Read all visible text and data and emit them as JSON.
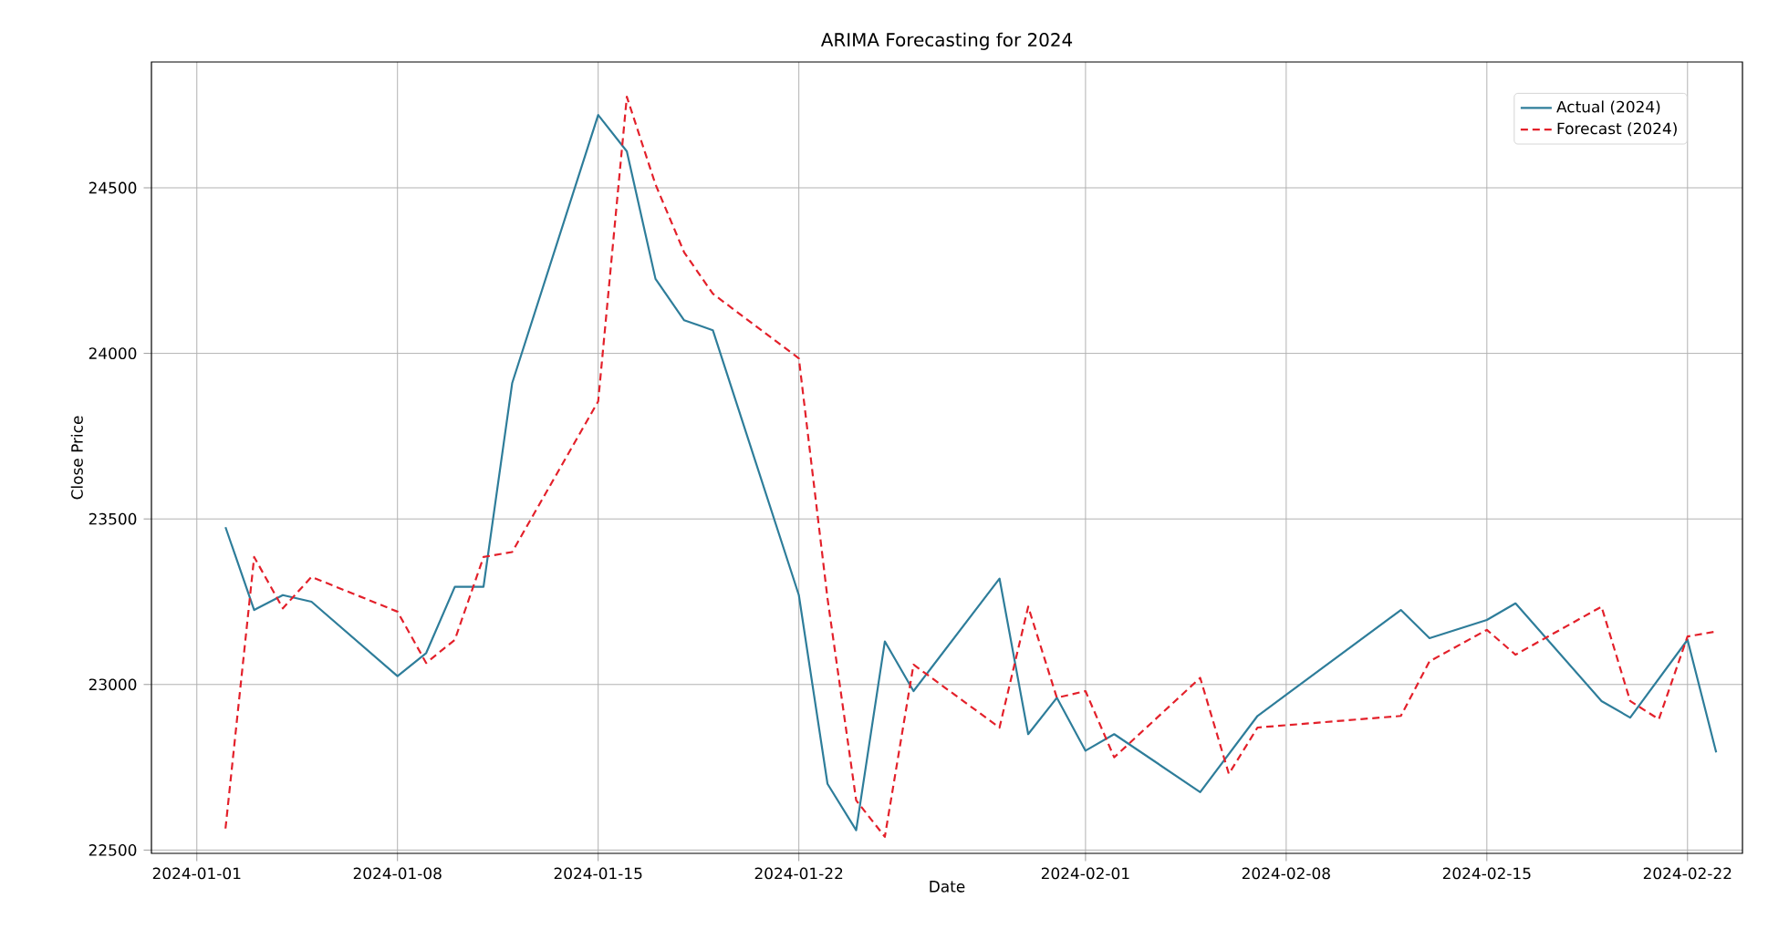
{
  "chart_data": {
    "type": "line",
    "title": "ARIMA Forecasting for 2024",
    "xlabel": "Date",
    "ylabel": "Close Price",
    "xlim": [
      "2023-12-30T10:00",
      "2024-02-23T22:00"
    ],
    "xticks": [
      "2024-01-01",
      "2024-01-08",
      "2024-01-15",
      "2024-01-22",
      "2024-02-01",
      "2024-02-08",
      "2024-02-15",
      "2024-02-22"
    ],
    "ylim": [
      22490,
      24880
    ],
    "yticks": [
      22500,
      23000,
      23500,
      24000,
      24500
    ],
    "grid": true,
    "legend": "top right",
    "series": [
      {
        "name": "Actual (2024)",
        "color": "#2e7d9a",
        "line_style": "solid",
        "x": [
          "2024-01-02",
          "2024-01-03",
          "2024-01-04",
          "2024-01-05",
          "2024-01-08",
          "2024-01-09",
          "2024-01-10",
          "2024-01-11",
          "2024-01-12",
          "2024-01-15",
          "2024-01-16",
          "2024-01-17",
          "2024-01-18",
          "2024-01-19",
          "2024-01-22",
          "2024-01-23",
          "2024-01-24",
          "2024-01-25",
          "2024-01-26",
          "2024-01-29",
          "2024-01-30",
          "2024-01-31",
          "2024-02-01",
          "2024-02-02",
          "2024-02-05",
          "2024-02-07",
          "2024-02-12",
          "2024-02-13",
          "2024-02-15",
          "2024-02-16",
          "2024-02-19",
          "2024-02-20",
          "2024-02-22",
          "2024-02-23"
        ],
        "values": [
          23475,
          23225,
          23270,
          23250,
          23025,
          23095,
          23295,
          23295,
          23910,
          24720,
          24610,
          24225,
          24100,
          24070,
          23270,
          22700,
          22560,
          23130,
          22980,
          23320,
          22850,
          22960,
          22800,
          22850,
          22675,
          22905,
          23225,
          23140,
          23195,
          23245,
          22950,
          22900,
          23135,
          22795
        ]
      },
      {
        "name": "Forecast (2024)",
        "color": "#e3202a",
        "line_style": "dashed",
        "x": [
          "2024-01-02",
          "2024-01-03",
          "2024-01-04",
          "2024-01-05",
          "2024-01-08",
          "2024-01-09",
          "2024-01-10",
          "2024-01-11",
          "2024-01-12",
          "2024-01-15",
          "2024-01-16",
          "2024-01-17",
          "2024-01-18",
          "2024-01-19",
          "2024-01-22",
          "2024-01-23",
          "2024-01-24",
          "2024-01-25",
          "2024-01-26",
          "2024-01-29",
          "2024-01-30",
          "2024-01-31",
          "2024-02-01",
          "2024-02-02",
          "2024-02-05",
          "2024-02-06",
          "2024-02-07",
          "2024-02-12",
          "2024-02-13",
          "2024-02-15",
          "2024-02-16",
          "2024-02-19",
          "2024-02-20",
          "2024-02-21",
          "2024-02-22",
          "2024-02-23"
        ],
        "values": [
          22565,
          23385,
          23230,
          23325,
          23220,
          23065,
          23135,
          23385,
          23400,
          23855,
          24775,
          24510,
          24305,
          24180,
          23985,
          23260,
          22650,
          22540,
          23060,
          22870,
          23235,
          22960,
          22980,
          22780,
          23020,
          22730,
          22870,
          22905,
          23070,
          23165,
          23090,
          23235,
          22950,
          22895,
          23145,
          23160
        ]
      }
    ]
  }
}
